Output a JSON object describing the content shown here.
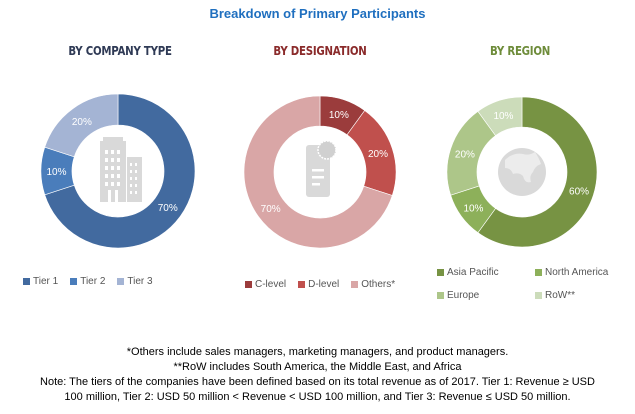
{
  "title": "Breakdown of Primary Participants",
  "chart_data": [
    {
      "type": "pie",
      "variant": "donut",
      "title": "BY COMPANY TYPE",
      "center_icon": "building-icon",
      "title_color": "#2f3a55",
      "categories": [
        "Tier 1",
        "Tier 2",
        "Tier 3"
      ],
      "values": [
        70,
        10,
        20
      ],
      "labels": [
        "70%",
        "10%",
        "20%"
      ],
      "colors": [
        "#426a9f",
        "#4a7dbb",
        "#a4b4d4"
      ],
      "legend": "bottom"
    },
    {
      "type": "pie",
      "variant": "donut",
      "title": "BY DESIGNATION",
      "center_icon": "document-certificate-icon",
      "title_color": "#8a2a2a",
      "categories": [
        "C-level",
        "D-level",
        "Others*"
      ],
      "values": [
        10,
        20,
        70
      ],
      "labels": [
        "10%",
        "20%",
        "70%"
      ],
      "colors": [
        "#9b3c3c",
        "#c0504d",
        "#d9a6a6"
      ],
      "legend": "bottom"
    },
    {
      "type": "pie",
      "variant": "donut",
      "title": "BY REGION",
      "center_icon": "globe-icon",
      "title_color": "#6e8c3a",
      "categories": [
        "Asia Pacific",
        "North America",
        "Europe",
        "RoW**"
      ],
      "values": [
        60,
        10,
        20,
        10
      ],
      "labels": [
        "60%",
        "10%",
        "20%",
        "10%"
      ],
      "colors": [
        "#779343",
        "#8db05a",
        "#adc689",
        "#ccdcba"
      ],
      "legend": "bottom"
    }
  ],
  "notes": [
    "*Others include sales managers, marketing managers, and product managers.",
    "**RoW includes South America, the Middle East, and Africa",
    "Note: The tiers of the companies have been defined based on its total revenue as of 2017. Tier 1: Revenue ≥ USD",
    "100 million, Tier 2:  USD 50 million < Revenue < USD 100 million, and Tier 3: Revenue ≤ USD 50 million."
  ]
}
